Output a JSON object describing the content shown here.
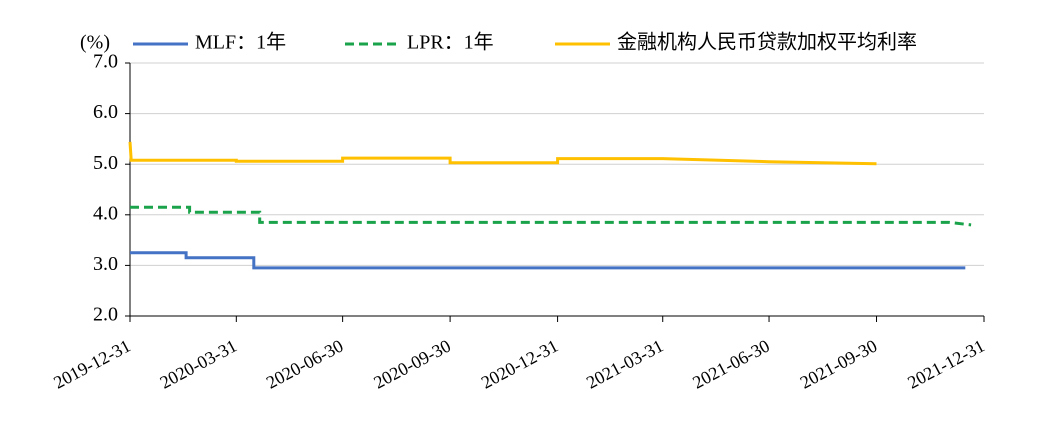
{
  "chart_data": {
    "type": "line",
    "y_unit": "(%)",
    "xlim": [
      "2019-12-31",
      "2021-12-31"
    ],
    "xticks": [
      "2019-12-31",
      "2020-03-31",
      "2020-06-30",
      "2020-09-30",
      "2020-12-31",
      "2021-03-31",
      "2021-06-30",
      "2021-09-30",
      "2021-12-31"
    ],
    "ylim": [
      2,
      7
    ],
    "yticks": [
      {
        "value": 2,
        "label": "2.0"
      },
      {
        "value": 3,
        "label": "3.0"
      },
      {
        "value": 4,
        "label": "4.0"
      },
      {
        "value": 5,
        "label": "5.0"
      },
      {
        "value": 6,
        "label": "6.0"
      },
      {
        "value": 7,
        "label": "7.0"
      }
    ],
    "grid": true,
    "series": [
      {
        "name": "MLF：1年",
        "color": "#4472c4",
        "dashed": false,
        "x": [
          "2019-12-31",
          "2020-02-17",
          "2020-02-17",
          "2020-04-15",
          "2020-04-15",
          "2021-12-15"
        ],
        "values": [
          3.25,
          3.25,
          3.15,
          3.15,
          2.95,
          2.95
        ]
      },
      {
        "name": "LPR：1年",
        "color": "#1aa34a",
        "dashed": true,
        "x": [
          "2019-12-31",
          "2020-02-20",
          "2020-02-20",
          "2020-04-20",
          "2020-04-20",
          "2021-12-01",
          "2021-12-20"
        ],
        "values": [
          4.15,
          4.15,
          4.05,
          4.05,
          3.85,
          3.85,
          3.8
        ]
      },
      {
        "name": "金融机构人民币贷款加权平均利率",
        "color": "#ffc000",
        "dashed": false,
        "x": [
          "2019-12-31",
          "2020-01-01",
          "2020-03-31",
          "2020-03-31",
          "2020-06-30",
          "2020-06-30",
          "2020-09-30",
          "2020-09-30",
          "2020-12-31",
          "2020-12-31",
          "2021-03-31",
          "2021-06-30",
          "2021-09-30"
        ],
        "values": [
          5.44,
          5.08,
          5.08,
          5.06,
          5.06,
          5.12,
          5.12,
          5.03,
          5.03,
          5.11,
          5.11,
          5.05,
          5.01
        ]
      }
    ]
  }
}
